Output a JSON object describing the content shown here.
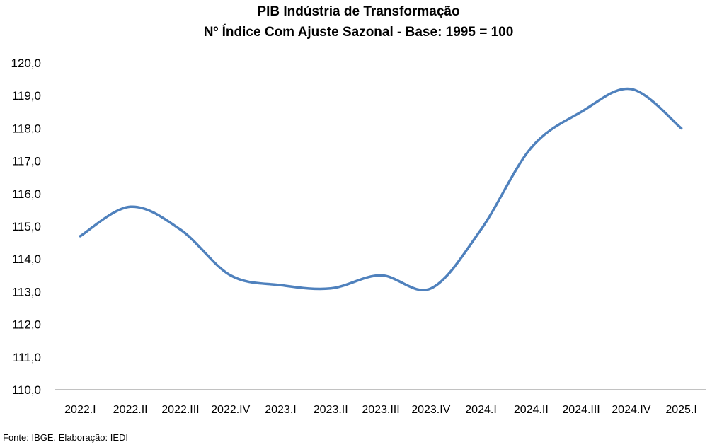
{
  "chart_data": {
    "type": "line",
    "title": "PIB Indústria de Transformação",
    "subtitle": "Nº Índice Com Ajuste Sazonal - Base: 1995 = 100",
    "categories": [
      "2022.I",
      "2022.II",
      "2022.III",
      "2022.IV",
      "2023.I",
      "2023.II",
      "2023.III",
      "2023.IV",
      "2024.I",
      "2024.II",
      "2024.III",
      "2024.IV",
      "2025.I"
    ],
    "series": [
      {
        "values": [
          114.7,
          115.6,
          114.9,
          113.5,
          113.2,
          113.1,
          113.5,
          113.1,
          114.9,
          117.4,
          118.5,
          119.2,
          118.0
        ]
      }
    ],
    "ylim": [
      110,
      120
    ],
    "yticks": [
      "110,0",
      "111,0",
      "112,0",
      "113,0",
      "114,0",
      "115,0",
      "116,0",
      "117,0",
      "118,0",
      "119,0",
      "120,0"
    ],
    "xlabel": "",
    "ylabel": "",
    "grid": false,
    "legend": "none",
    "line_color": "#4f81bd",
    "source": "Fonte: IBGE. Elaboração: IEDI"
  }
}
